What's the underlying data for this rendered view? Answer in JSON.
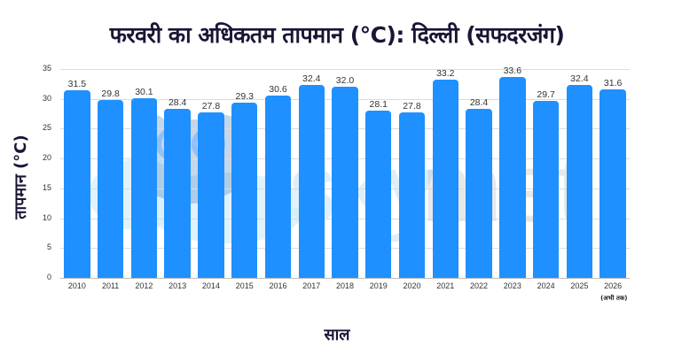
{
  "chart_data": {
    "type": "bar",
    "title": "फरवरी का अधिकतम तापमान (°C): दिल्ली (सफदरजंग)",
    "xlabel": "साल",
    "ylabel": "तापमान (°C)",
    "categories": [
      "2010",
      "2011",
      "2012",
      "2013",
      "2014",
      "2015",
      "2016",
      "2017",
      "2018",
      "2019",
      "2020",
      "2021",
      "2022",
      "2023",
      "2024",
      "2025",
      "2026"
    ],
    "values": [
      31.5,
      29.8,
      30.1,
      28.4,
      27.8,
      29.3,
      30.6,
      32.4,
      32.0,
      28.1,
      27.8,
      33.2,
      28.4,
      33.6,
      29.7,
      32.4,
      31.6
    ],
    "value_labels": [
      "31.5",
      "29.8",
      "30.1",
      "28.4",
      "27.8",
      "29.3",
      "30.6",
      "32.4",
      "32.0",
      "28.1",
      "27.8",
      "33.2",
      "28.4",
      "33.6",
      "29.7",
      "32.4",
      "31.6"
    ],
    "ylim": [
      0,
      35
    ],
    "yticks": [
      0,
      5,
      10,
      15,
      20,
      25,
      30,
      35
    ],
    "grid": true,
    "legend": null,
    "annotations": [
      {
        "category": "2026",
        "text": "(अभी तक)"
      }
    ],
    "bar_color": "#1e90ff"
  },
  "watermark": {
    "text": "skymet"
  }
}
